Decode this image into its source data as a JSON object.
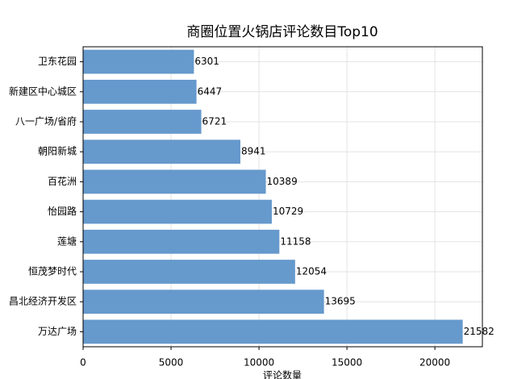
{
  "chart_data": {
    "type": "barh",
    "title": "商圈位置火锅店评论数目Top10",
    "x_label": "评论数量",
    "categories": [
      "卫东花园",
      "新建区中心城区",
      "八一广场/省府",
      "朝阳新城",
      "百花洲",
      "怡园路",
      "莲塘",
      "恒茂梦时代",
      "昌北经济开发区",
      "万达广场"
    ],
    "values": [
      6301,
      6447,
      6721,
      8941,
      10389,
      10729,
      11158,
      12054,
      13695,
      21582
    ],
    "color": "#6699cc",
    "xlim": [
      0,
      22700
    ],
    "xticks": [
      0,
      5000,
      10000,
      15000,
      20000
    ],
    "grid": true
  }
}
